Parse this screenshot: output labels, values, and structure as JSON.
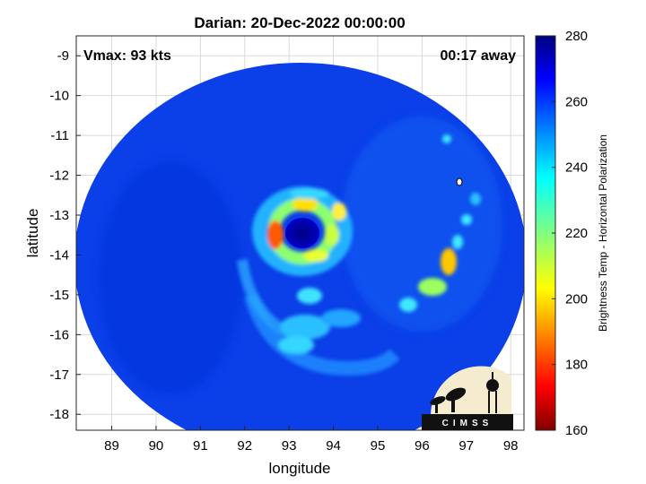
{
  "chart_data": {
    "type": "heatmap",
    "title": "Darian: 20-Dec-2022 00:00:00",
    "xlabel": "longitude",
    "ylabel": "latitude",
    "xlim": [
      88.2,
      98.3
    ],
    "ylim": [
      -18.4,
      -8.5
    ],
    "xticks": [
      89,
      90,
      91,
      92,
      93,
      94,
      95,
      96,
      97,
      98
    ],
    "yticks": [
      -9,
      -10,
      -11,
      -12,
      -13,
      -14,
      -15,
      -16,
      -17,
      -18
    ],
    "grid": true,
    "annotations": {
      "vmax": "Vmax: 93 kts",
      "away": "00:17 away"
    },
    "colorbar": {
      "label": "Brightness Temp - Horizontal Polarization",
      "range": [
        160,
        280
      ],
      "ticks": [
        160,
        180,
        200,
        220,
        240,
        260,
        280
      ],
      "colormap": "jet"
    },
    "storm_center": {
      "lon": 93.2,
      "lat": -13.6
    },
    "swath": {
      "center_lon": 93.3,
      "center_lat": -13.5,
      "radius_lon": 5.1,
      "radius_lat": 5.0
    },
    "features": [
      {
        "name": "eye",
        "lon": 93.25,
        "lat": -13.55,
        "value": 268
      },
      {
        "name": "eyewall-west",
        "lon": 92.65,
        "lat": -13.55,
        "value": 185
      },
      {
        "name": "eyewall-ring",
        "lon": 93.2,
        "lat": -13.5,
        "value": 215
      },
      {
        "name": "rainband-east-a",
        "lon": 96.6,
        "lat": -14.1,
        "value": 205
      },
      {
        "name": "rainband-east-b",
        "lon": 96.4,
        "lat": -14.9,
        "value": 215
      },
      {
        "name": "rainband-east-c",
        "lon": 95.7,
        "lat": -15.4,
        "value": 225
      },
      {
        "name": "rainband-south",
        "lon": 93.3,
        "lat": -16.2,
        "value": 235
      }
    ]
  },
  "logo": {
    "text": "CIMSS"
  },
  "colors": {
    "background": "#ffffff",
    "gridline": "#d9d9d9",
    "axis": "#262626"
  }
}
